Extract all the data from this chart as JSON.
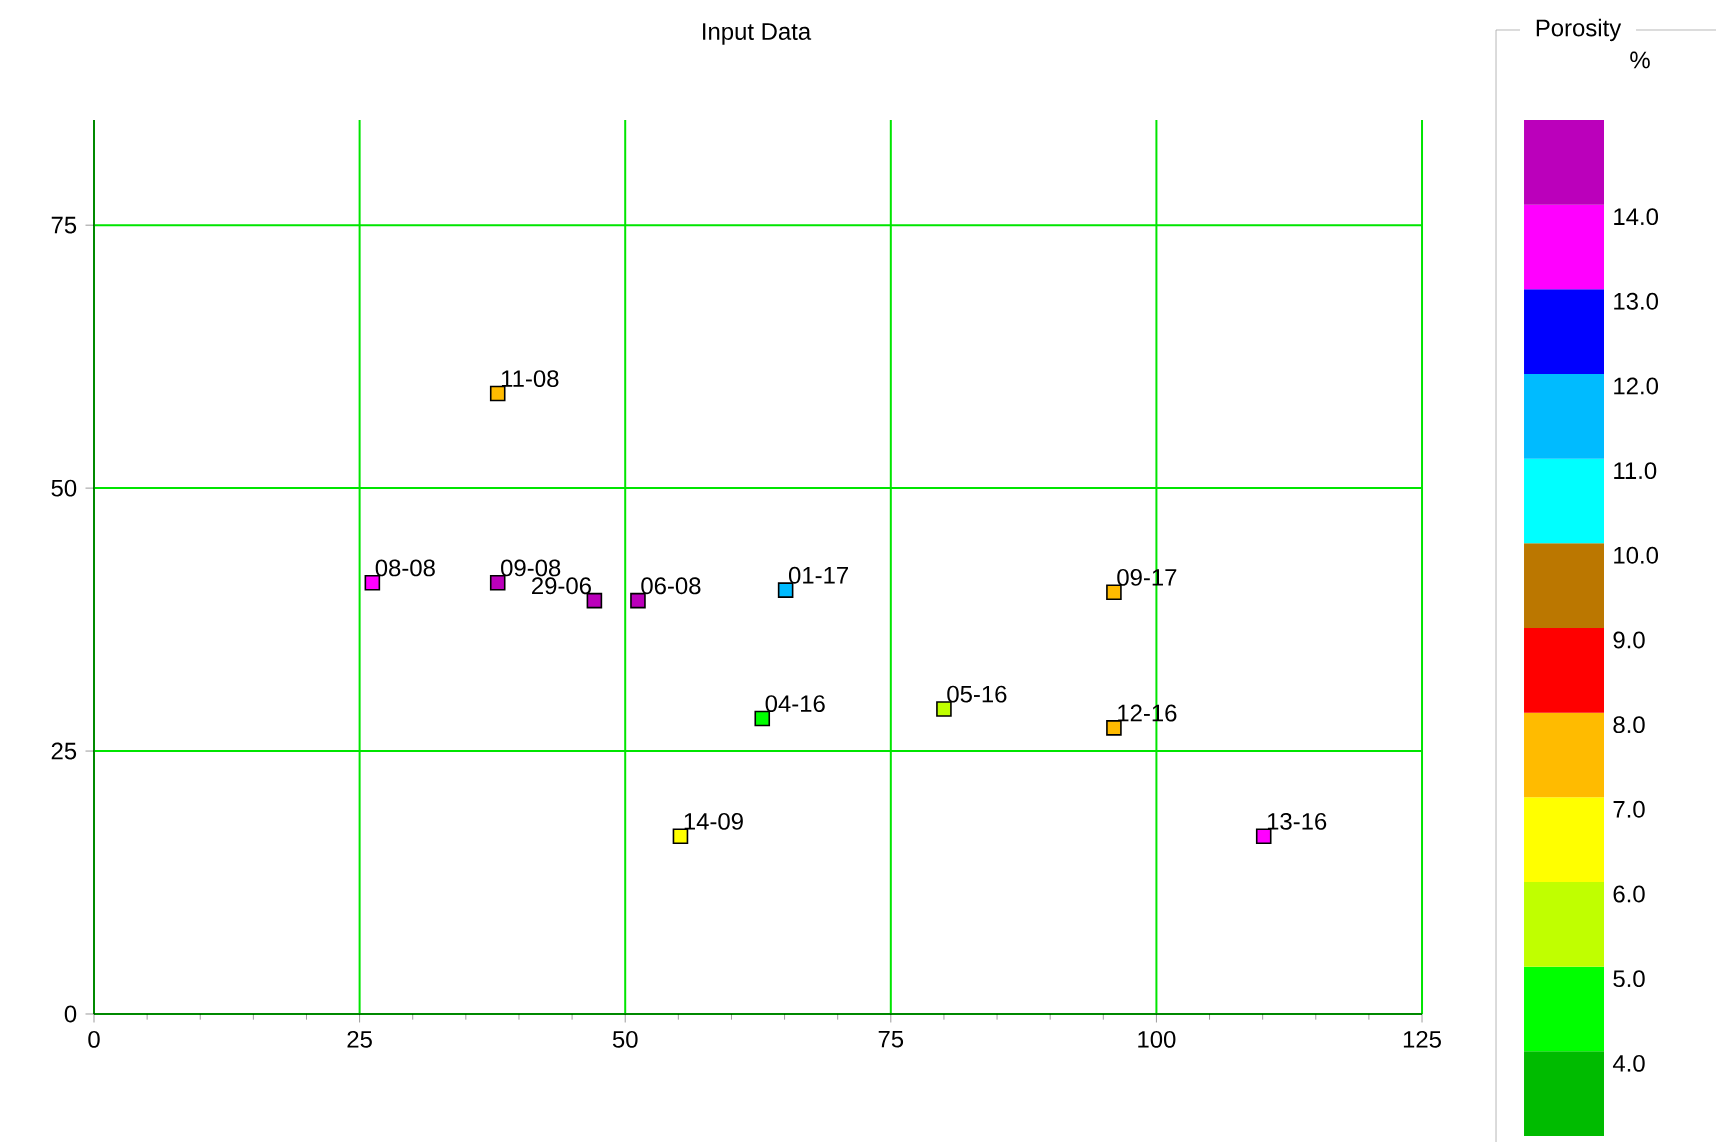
{
  "chart_data": {
    "type": "scatter",
    "title": "Input Data",
    "clabel": "Porosity",
    "x": [
      26.2,
      38.0,
      38.0,
      47.1,
      51.2,
      65.1,
      96.0,
      62.9,
      80.0,
      96.0,
      55.2,
      110.1
    ],
    "values": [
      41.0,
      59.0,
      41.0,
      39.3,
      39.3,
      40.3,
      40.1,
      28.1,
      29.0,
      27.2,
      16.9,
      16.9
    ],
    "cvalues": [
      13.5,
      7.5,
      14.5,
      14.5,
      14.5,
      11.5,
      7.5,
      4.5,
      5.5,
      7.5,
      6.5,
      13.5
    ],
    "marker": "square",
    "grid": true,
    "xlim": [
      0,
      125
    ],
    "ylim": [
      0,
      85
    ],
    "xticks": [
      0,
      25,
      50,
      75,
      100,
      125
    ],
    "yticks": [
      0,
      25,
      50,
      75
    ],
    "clim": [
      3,
      15
    ],
    "cticks": [
      {
        "value": 4,
        "label": "4.0"
      },
      {
        "value": 5,
        "label": "5.0"
      },
      {
        "value": 6,
        "label": "6.0"
      },
      {
        "value": 7,
        "label": "7.0"
      },
      {
        "value": 8,
        "label": "8.0"
      },
      {
        "value": 9,
        "label": "9.0"
      },
      {
        "value": 10,
        "label": "10.0"
      },
      {
        "value": 11,
        "label": "11.0"
      },
      {
        "value": 12,
        "label": "12.0"
      },
      {
        "value": 13,
        "label": "13.0"
      },
      {
        "value": 14,
        "label": "14.0"
      }
    ],
    "annotations": [
      {
        "text": "08-08",
        "x": 26.2,
        "y": 41.0
      },
      {
        "text": "11-08",
        "x": 38.0,
        "y": 59.0
      },
      {
        "text": "09-08",
        "x": 38.0,
        "y": 41.0
      },
      {
        "text": "29-06",
        "x": 47.1,
        "y": 39.3
      },
      {
        "text": "06-08",
        "x": 51.2,
        "y": 39.3
      },
      {
        "text": "01-17",
        "x": 65.1,
        "y": 40.3
      },
      {
        "text": "09-17",
        "x": 96.0,
        "y": 40.1
      },
      {
        "text": "04-16",
        "x": 62.9,
        "y": 28.1
      },
      {
        "text": "05-16",
        "x": 80.0,
        "y": 29.0
      },
      {
        "text": "12-16",
        "x": 96.0,
        "y": 27.2
      },
      {
        "text": "14-09",
        "x": 55.2,
        "y": 16.9
      },
      {
        "text": "13-16",
        "x": 110.1,
        "y": 16.9
      },
      "%"
    ]
  }
}
